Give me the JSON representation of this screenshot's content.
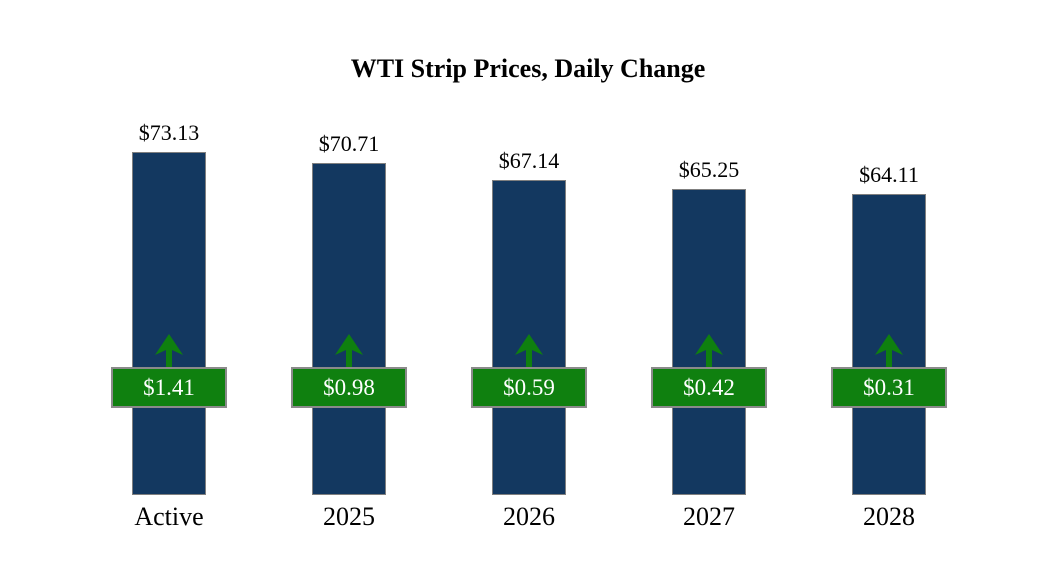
{
  "chart_data": {
    "type": "bar",
    "title": "WTI Strip Prices, Daily Change",
    "categories": [
      "Active",
      "2025",
      "2026",
      "2027",
      "2028"
    ],
    "series": [
      {
        "name": "WTI Strip Price",
        "values": [
          73.13,
          70.71,
          67.14,
          65.25,
          64.11
        ],
        "labels": [
          "$73.13",
          "$70.71",
          "$67.14",
          "$65.25",
          "$64.11"
        ]
      },
      {
        "name": "Daily Change",
        "values": [
          1.41,
          0.98,
          0.59,
          0.42,
          0.31
        ],
        "labels": [
          "$1.41",
          "$0.98",
          "$0.59",
          "$0.42",
          "$0.31"
        ],
        "direction": "up"
      }
    ],
    "ylim": [
      0,
      73.13
    ],
    "grid": false,
    "legend": "none",
    "colors": {
      "bar": "#133860",
      "bar_border": "#7f7f7f",
      "badge_fill": "#0f800f",
      "badge_border": "#8a8a8a",
      "badge_text": "#ffffff",
      "arrow": "#0f800f",
      "text": "#000000"
    }
  }
}
